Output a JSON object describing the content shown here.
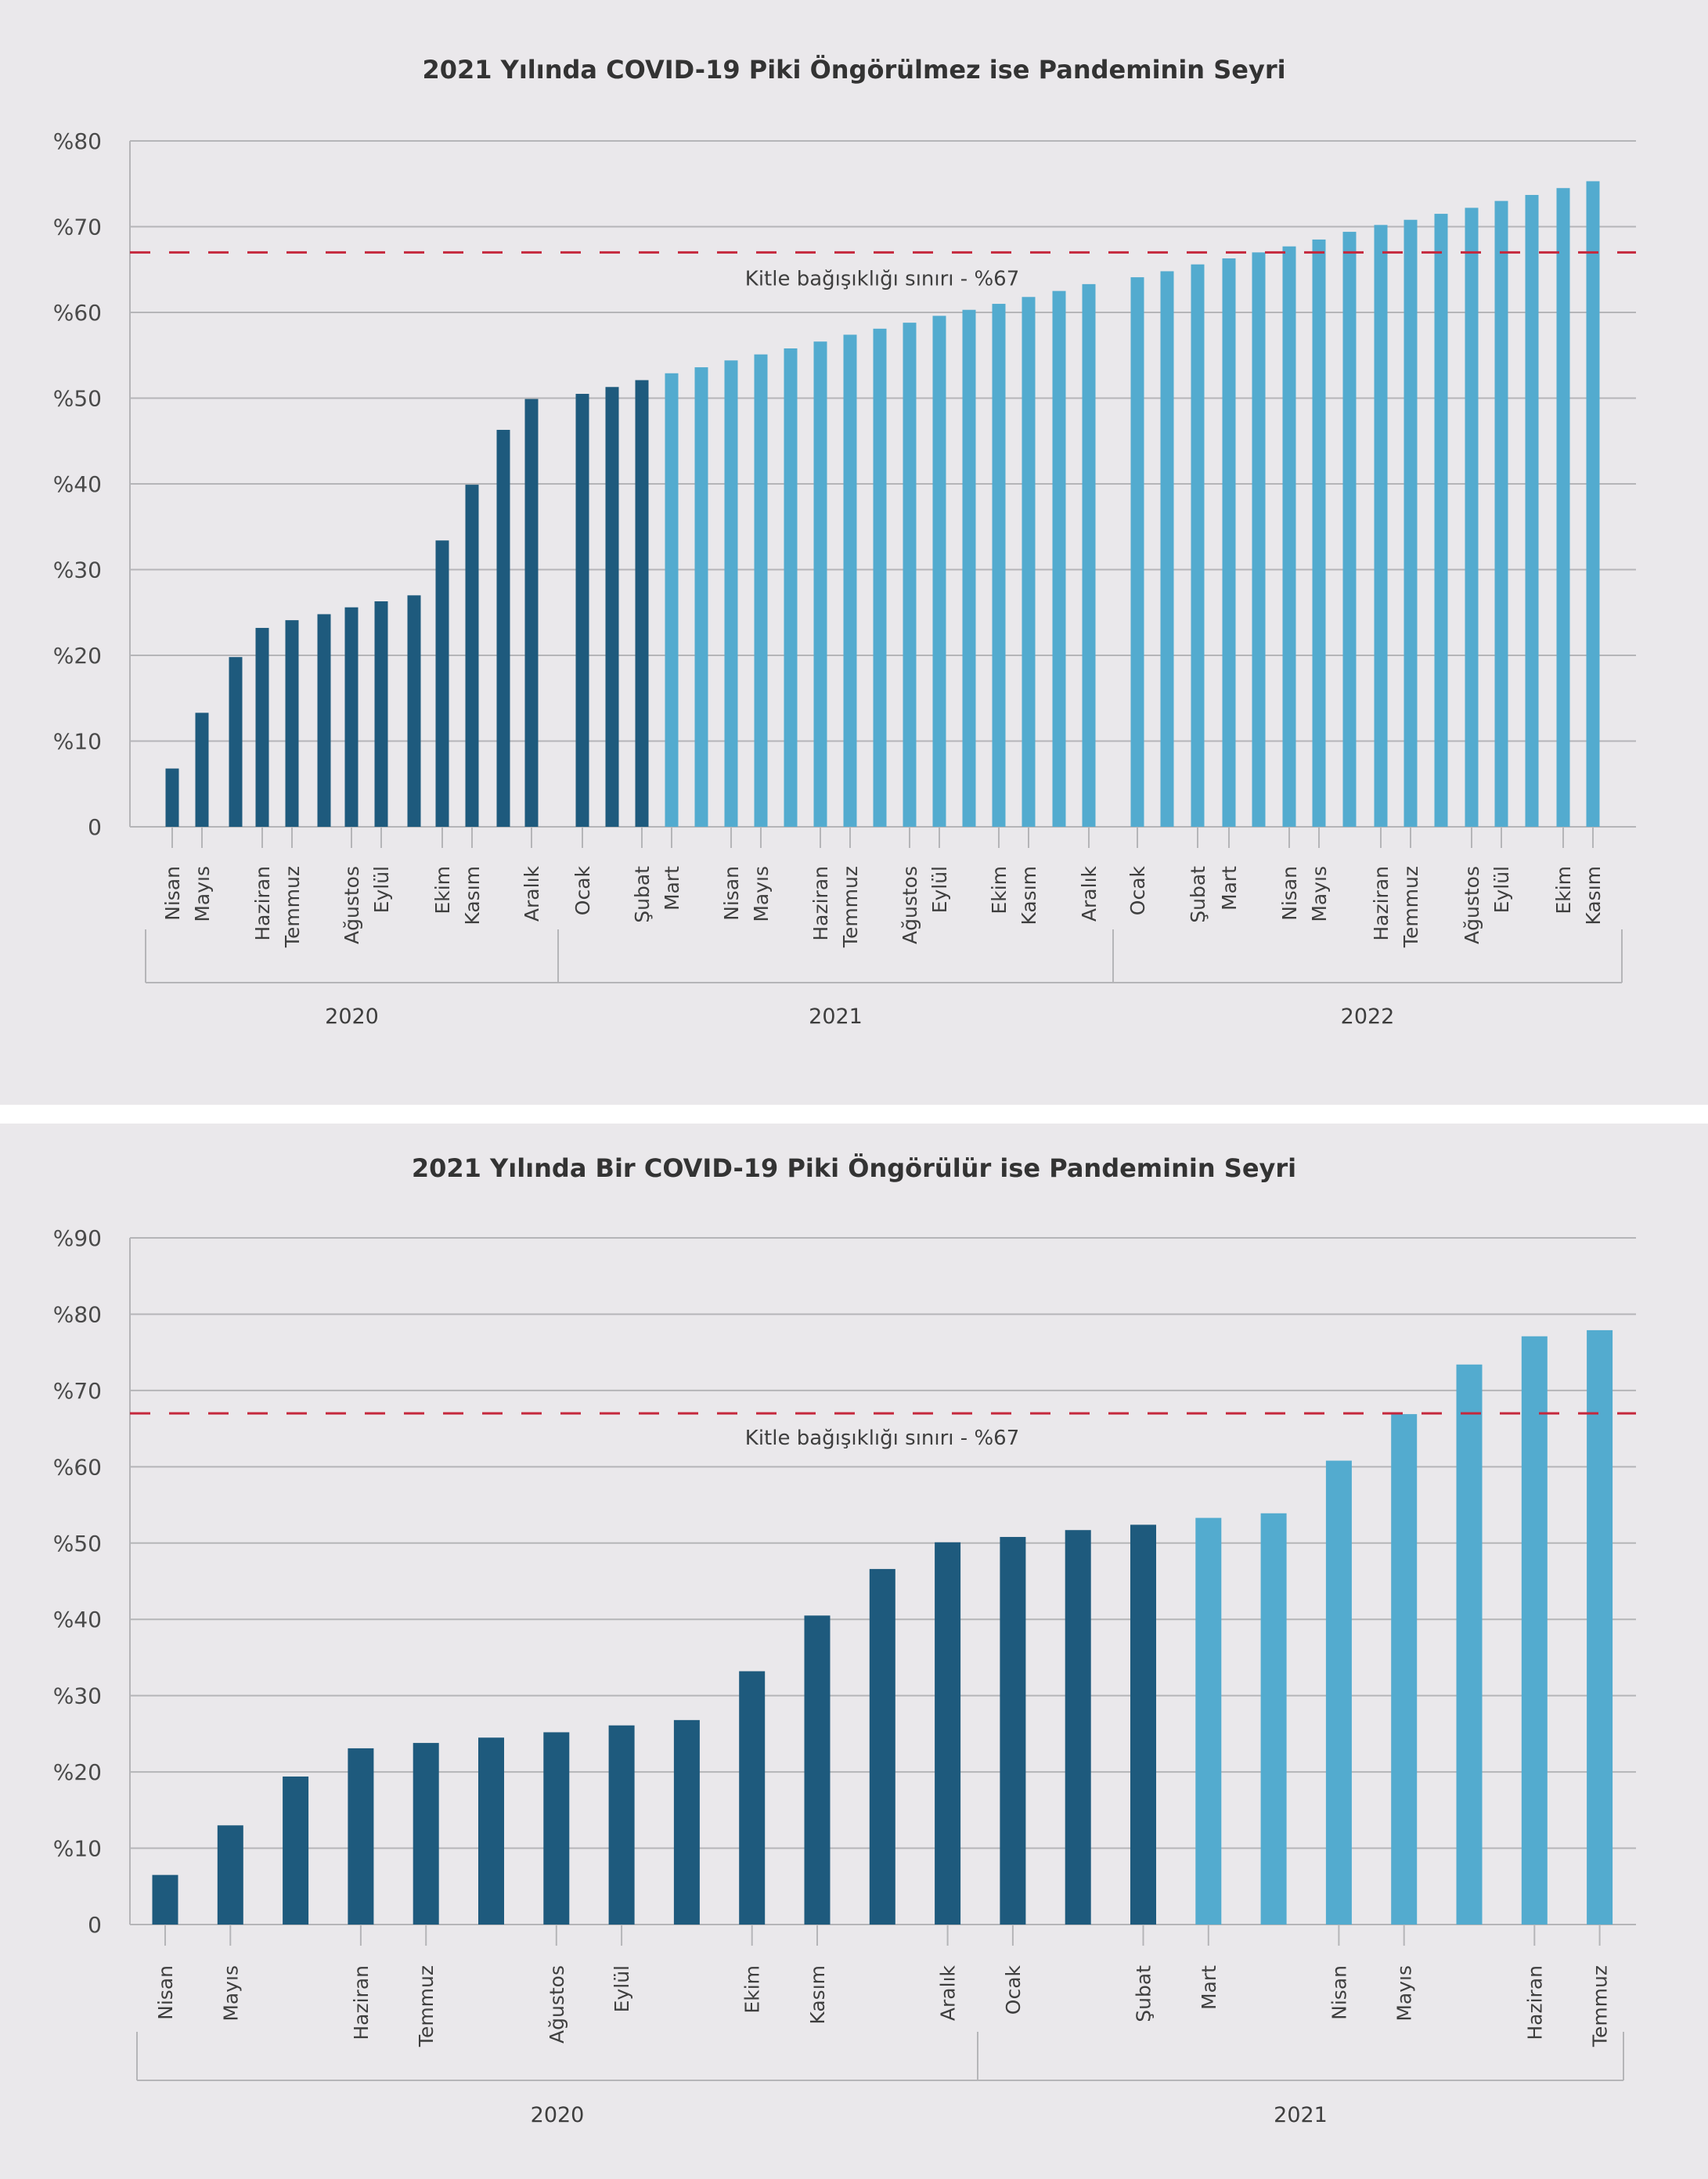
{
  "colors": {
    "background": "#eae8eb",
    "separator": "#ffffff",
    "dark_bar": "#1e5a7d",
    "light_bar": "#53abcf",
    "threshold": "#c5283d",
    "grid": "#b5b5b8",
    "text": "#333333"
  },
  "chart_data": [
    {
      "type": "bar",
      "title": "2021 Yılında COVID-19 Piki Öngörülmez ise Pandeminin Seyri",
      "xlabel": "",
      "ylabel": "",
      "ylim": [
        0,
        80
      ],
      "yticks": [
        0,
        10,
        20,
        30,
        40,
        50,
        60,
        70,
        80
      ],
      "ytick_labels": [
        "0",
        "%10",
        "%20",
        "%30",
        "%40",
        "%50",
        "%60",
        "%70",
        "%80"
      ],
      "grid": true,
      "legend": "none",
      "threshold": {
        "value": 67,
        "label": "Kitle bağışıklığı sınırı - %67",
        "style": "dashed"
      },
      "groups": [
        {
          "year": "2020",
          "count": 13
        },
        {
          "year": "2021",
          "count": 18
        },
        {
          "year": "2022",
          "count": 16
        }
      ],
      "values": [
        6.8,
        13.3,
        19.8,
        23.2,
        24.1,
        24.8,
        25.6,
        26.3,
        27.0,
        33.4,
        39.9,
        46.3,
        49.9,
        50.5,
        51.3,
        52.1,
        52.9,
        53.6,
        54.4,
        55.1,
        55.8,
        56.6,
        57.4,
        58.1,
        58.8,
        59.6,
        60.3,
        61.0,
        61.8,
        62.5,
        63.3,
        64.1,
        64.8,
        65.6,
        66.3,
        67.0,
        67.7,
        68.5,
        69.4,
        70.2,
        70.8,
        71.5,
        72.2,
        73.0,
        73.7,
        74.5,
        75.3
      ],
      "bar_shades": [
        "dark",
        "dark",
        "dark",
        "dark",
        "dark",
        "dark",
        "dark",
        "dark",
        "dark",
        "dark",
        "dark",
        "dark",
        "dark",
        "dark",
        "dark",
        "dark",
        "light",
        "light",
        "light",
        "light",
        "light",
        "light",
        "light",
        "light",
        "light",
        "light",
        "light",
        "light",
        "light",
        "light",
        "light",
        "light",
        "light",
        "light",
        "light",
        "light",
        "light",
        "light",
        "light",
        "light",
        "light",
        "light",
        "light",
        "light",
        "light",
        "light",
        "light"
      ],
      "tick_labels": [
        {
          "bar": 0,
          "label": "Nisan"
        },
        {
          "bar": 1,
          "label": "Mayıs"
        },
        {
          "bar": 3,
          "label": "Haziran"
        },
        {
          "bar": 4,
          "label": "Temmuz"
        },
        {
          "bar": 6,
          "label": "Ağustos"
        },
        {
          "bar": 7,
          "label": "Eylül"
        },
        {
          "bar": 9,
          "label": "Ekim"
        },
        {
          "bar": 10,
          "label": "Kasım"
        },
        {
          "bar": 12,
          "label": "Aralık"
        },
        {
          "bar": 13,
          "label": "Ocak"
        },
        {
          "bar": 15,
          "label": "Şubat"
        },
        {
          "bar": 16,
          "label": "Mart"
        },
        {
          "bar": 18,
          "label": "Nisan"
        },
        {
          "bar": 19,
          "label": "Mayıs"
        },
        {
          "bar": 21,
          "label": "Haziran"
        },
        {
          "bar": 22,
          "label": "Temmuz"
        },
        {
          "bar": 24,
          "label": "Ağustos"
        },
        {
          "bar": 25,
          "label": "Eylül"
        },
        {
          "bar": 27,
          "label": "Ekim"
        },
        {
          "bar": 28,
          "label": "Kasım"
        },
        {
          "bar": 30,
          "label": "Aralık"
        },
        {
          "bar": 31,
          "label": "Ocak"
        },
        {
          "bar": 33,
          "label": "Şubat"
        },
        {
          "bar": 34,
          "label": "Mart"
        },
        {
          "bar": 36,
          "label": "Nisan"
        },
        {
          "bar": 37,
          "label": "Mayıs"
        },
        {
          "bar": 39,
          "label": "Haziran"
        },
        {
          "bar": 40,
          "label": "Temmuz"
        },
        {
          "bar": 42,
          "label": "Ağustos"
        },
        {
          "bar": 43,
          "label": "Eylül"
        },
        {
          "bar": 45,
          "label": "Ekim"
        },
        {
          "bar": 46,
          "label": "Kasım"
        }
      ]
    },
    {
      "type": "bar",
      "title": "2021 Yılında Bir COVID-19 Piki Öngörülür ise Pandeminin Seyri",
      "xlabel": "",
      "ylabel": "",
      "ylim": [
        0,
        90
      ],
      "yticks": [
        0,
        10,
        20,
        30,
        40,
        50,
        60,
        70,
        80,
        90
      ],
      "ytick_labels": [
        "0",
        "%10",
        "%20",
        "%30",
        "%40",
        "%50",
        "%60",
        "%70",
        "%80",
        "%90"
      ],
      "grid": true,
      "legend": "none",
      "threshold": {
        "value": 67,
        "label": "Kitle bağışıklığı sınırı - %67",
        "style": "dashed"
      },
      "groups": [
        {
          "year": "2020",
          "count": 13
        },
        {
          "year": "2021",
          "count": 10
        }
      ],
      "values": [
        6.5,
        13.0,
        19.4,
        23.1,
        23.8,
        24.5,
        25.2,
        26.1,
        26.8,
        33.2,
        40.5,
        46.6,
        50.1,
        50.8,
        51.7,
        52.4,
        53.3,
        53.9,
        60.8,
        66.9,
        73.4,
        77.1,
        77.9
      ],
      "bar_shades": [
        "dark",
        "dark",
        "dark",
        "dark",
        "dark",
        "dark",
        "dark",
        "dark",
        "dark",
        "dark",
        "dark",
        "dark",
        "dark",
        "dark",
        "dark",
        "dark",
        "light",
        "light",
        "light",
        "light",
        "light",
        "light",
        "light"
      ],
      "tick_labels": [
        {
          "bar": 0,
          "label": "Nisan"
        },
        {
          "bar": 1,
          "label": "Mayıs"
        },
        {
          "bar": 3,
          "label": "Haziran"
        },
        {
          "bar": 4,
          "label": "Temmuz"
        },
        {
          "bar": 6,
          "label": "Ağustos"
        },
        {
          "bar": 7,
          "label": "Eylül"
        },
        {
          "bar": 9,
          "label": "Ekim"
        },
        {
          "bar": 10,
          "label": "Kasım"
        },
        {
          "bar": 12,
          "label": "Aralık"
        },
        {
          "bar": 13,
          "label": "Ocak"
        },
        {
          "bar": 15,
          "label": "Şubat"
        },
        {
          "bar": 16,
          "label": "Mart"
        },
        {
          "bar": 18,
          "label": "Nisan"
        },
        {
          "bar": 19,
          "label": "Mayıs"
        },
        {
          "bar": 21,
          "label": "Haziran"
        },
        {
          "bar": 22,
          "label": "Temmuz"
        }
      ]
    }
  ]
}
